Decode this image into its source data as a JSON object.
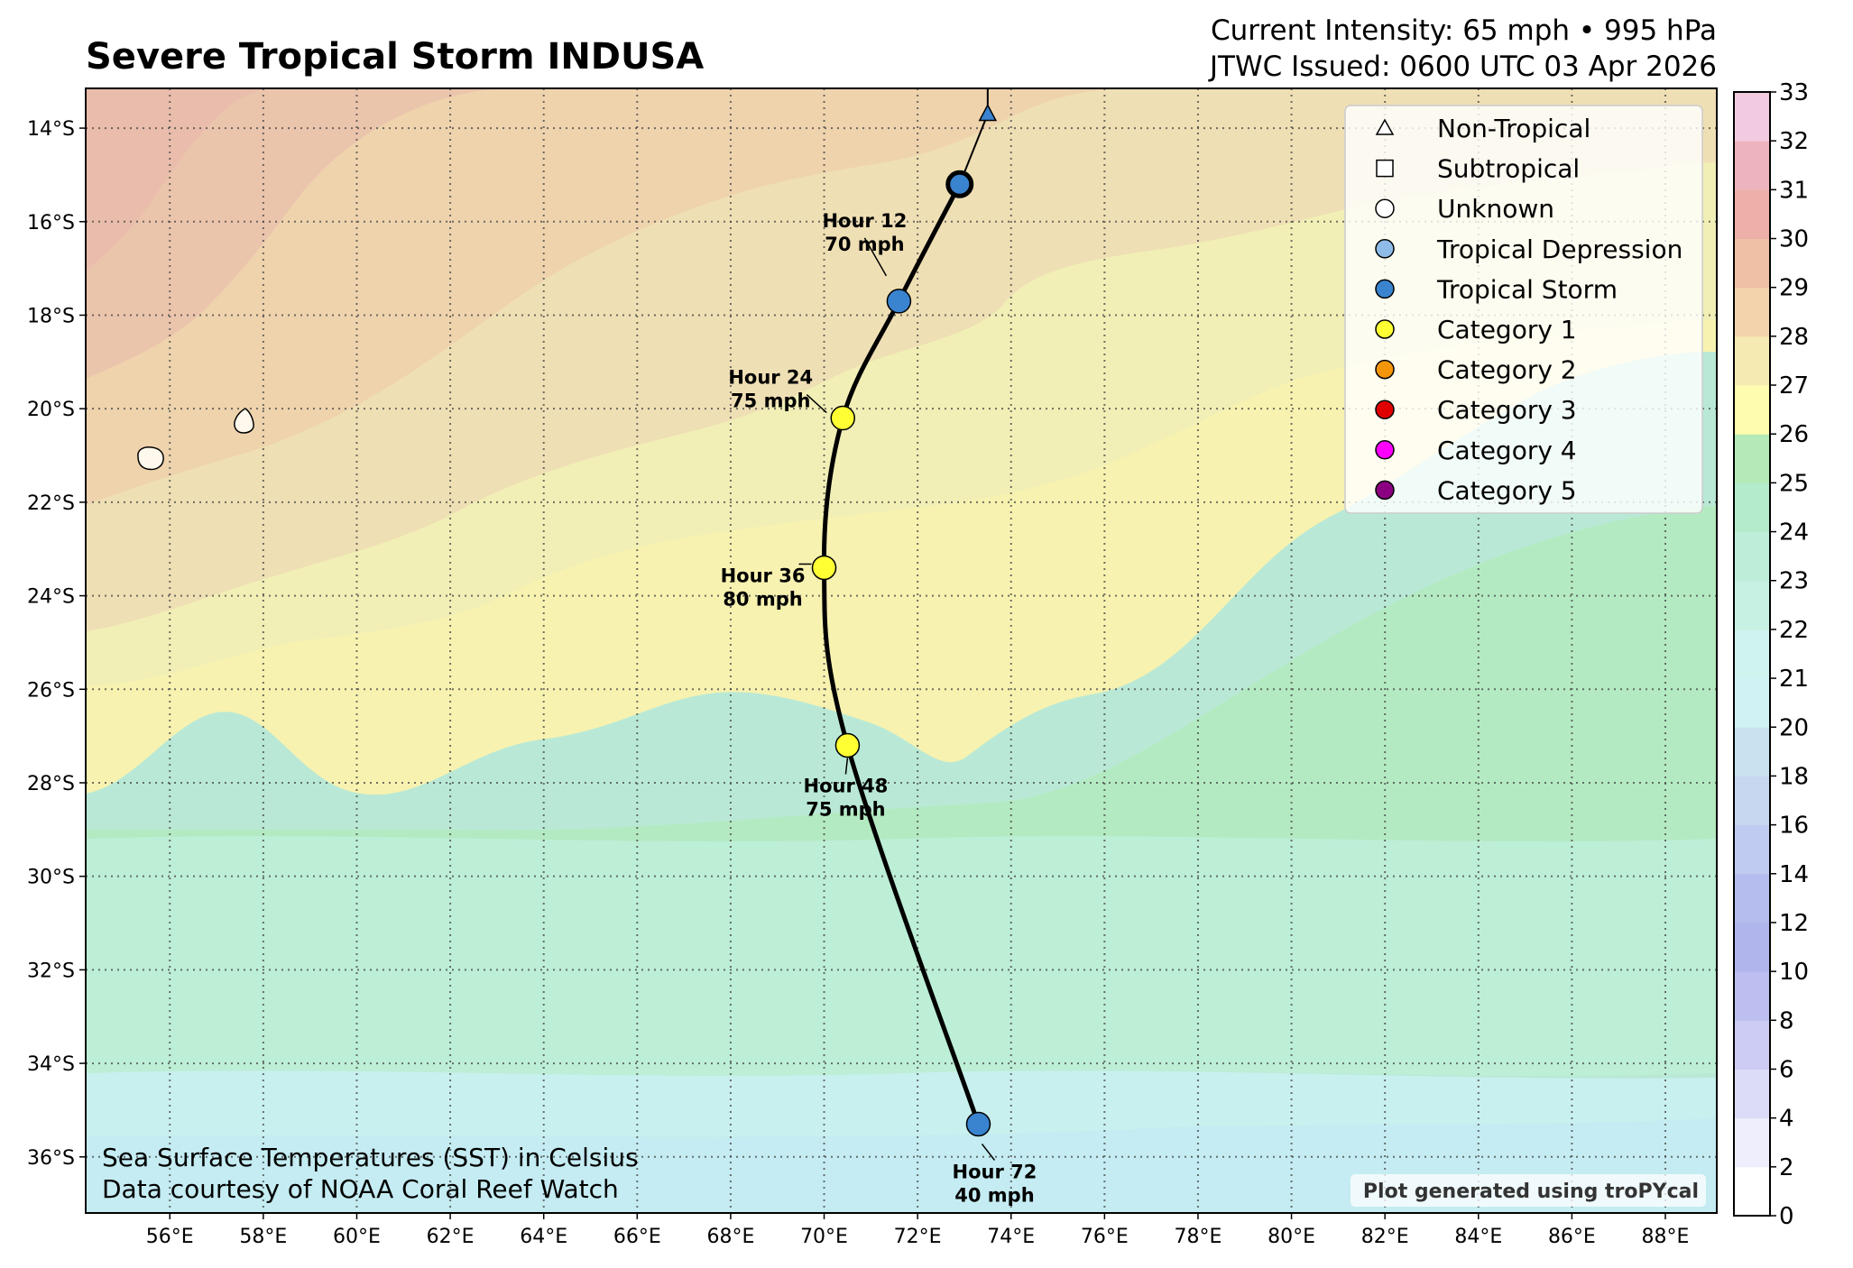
{
  "header": {
    "title": "Severe Tropical Storm INDUSA",
    "intensity": "Current Intensity: 65 mph • 995 hPa",
    "issued": "JTWC Issued: 0600 UTC 03 Apr 2026"
  },
  "axes": {
    "lon_ticks": [
      "56°E",
      "58°E",
      "60°E",
      "62°E",
      "64°E",
      "66°E",
      "68°E",
      "70°E",
      "72°E",
      "74°E",
      "76°E",
      "78°E",
      "80°E",
      "82°E",
      "84°E",
      "86°E",
      "88°E"
    ],
    "lat_ticks": [
      "14°S",
      "16°S",
      "18°S",
      "20°S",
      "22°S",
      "24°S",
      "26°S",
      "28°S",
      "30°S",
      "32°S",
      "34°S",
      "36°S"
    ]
  },
  "legend": [
    {
      "label": "Non-Tropical",
      "shape": "triangle",
      "color": "#ffffff"
    },
    {
      "label": "Subtropical",
      "shape": "square",
      "color": "#ffffff"
    },
    {
      "label": "Unknown",
      "shape": "circle",
      "color": "#ffffff"
    },
    {
      "label": "Tropical Depression",
      "shape": "circle",
      "color": "#8fbbe8"
    },
    {
      "label": "Tropical Storm",
      "shape": "circle",
      "color": "#3a83cf"
    },
    {
      "label": "Category 1",
      "shape": "circle",
      "color": "#ffff33"
    },
    {
      "label": "Category 2",
      "shape": "circle",
      "color": "#f5950a"
    },
    {
      "label": "Category 3",
      "shape": "circle",
      "color": "#e00000"
    },
    {
      "label": "Category 4",
      "shape": "circle",
      "color": "#ff00ff"
    },
    {
      "label": "Category 5",
      "shape": "circle",
      "color": "#8b0080"
    }
  ],
  "colorbar": {
    "labels": [
      "0",
      "2",
      "4",
      "6",
      "8",
      "10",
      "12",
      "14",
      "16",
      "18",
      "20",
      "21",
      "22",
      "23",
      "24",
      "25",
      "26",
      "27",
      "28",
      "29",
      "30",
      "31",
      "32",
      "33"
    ],
    "colors": [
      "#ffffff",
      "#eeeefc",
      "#dcdcf8",
      "#ccccf4",
      "#bcbff0",
      "#b0b5ec",
      "#b4bdee",
      "#bfcbf0",
      "#c6d7ef",
      "#c8e2f0",
      "#d0f2f4",
      "#cff3ee",
      "#c6f1e3",
      "#bdeeda",
      "#b3ebcc",
      "#b3eab8",
      "#fefcae",
      "#f5eab2",
      "#f3d3ab",
      "#efbfa6",
      "#ecb0a8",
      "#eeb4bd",
      "#f2cbe0"
    ]
  },
  "map_data": {
    "track": [
      {
        "lon": 73.5,
        "lat": -13.7,
        "type": "Non-Tropical"
      },
      {
        "lon": 72.9,
        "lat": -15.2,
        "type": "Tropical Storm",
        "current": true
      },
      {
        "lon": 71.6,
        "lat": -17.7,
        "type": "Tropical Storm",
        "label": [
          "Hour 12",
          "70 mph"
        ]
      },
      {
        "lon": 70.4,
        "lat": -20.2,
        "type": "Category 1",
        "label": [
          "Hour 24",
          "75 mph"
        ]
      },
      {
        "lon": 70.0,
        "lat": -23.4,
        "type": "Category 1",
        "label": [
          "Hour 36",
          "80 mph"
        ]
      },
      {
        "lon": 70.5,
        "lat": -27.2,
        "type": "Category 1",
        "label": [
          "Hour 48",
          "75 mph"
        ]
      },
      {
        "lon": 73.3,
        "lat": -35.3,
        "type": "Tropical Storm",
        "label": [
          "Hour 72",
          "40 mph"
        ]
      }
    ],
    "islands": [
      "Mauritius",
      "Réunion"
    ]
  },
  "footnote": {
    "line1": "Sea Surface Temperatures (SST) in Celsius",
    "line2": "Data courtesy of NOAA Coral Reef Watch"
  },
  "credit": "Plot generated using troPYcal"
}
